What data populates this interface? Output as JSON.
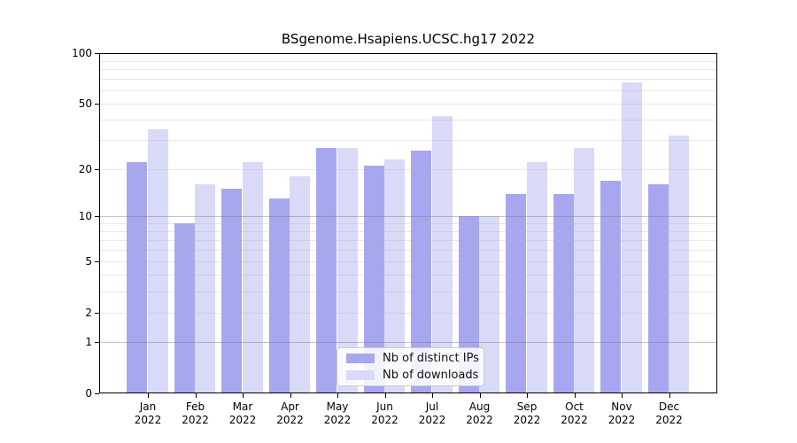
{
  "chart_data": {
    "type": "bar",
    "title": "BSgenome.Hsapiens.UCSC.hg17 2022",
    "year": "2022",
    "months": [
      "Jan",
      "Feb",
      "Mar",
      "Apr",
      "May",
      "Jun",
      "Jul",
      "Aug",
      "Sep",
      "Oct",
      "Nov",
      "Dec"
    ],
    "categories": [
      "Jan 2022",
      "Feb 2022",
      "Mar 2022",
      "Apr 2022",
      "May 2022",
      "Jun 2022",
      "Jul 2022",
      "Aug 2022",
      "Sep 2022",
      "Oct 2022",
      "Nov 2022",
      "Dec 2022"
    ],
    "series": [
      {
        "name": "Nb of distinct IPs",
        "color": "#a7a7f0",
        "values": [
          22,
          9,
          15,
          13,
          27,
          21,
          26,
          10,
          14,
          14,
          17,
          16
        ]
      },
      {
        "name": "Nb of downloads",
        "color": "#d9d9f8",
        "values": [
          35,
          16,
          22,
          18,
          27,
          23,
          42,
          10,
          22,
          27,
          67,
          32
        ]
      }
    ],
    "yscale": "log1p",
    "yticks": [
      0,
      1,
      2,
      5,
      10,
      20,
      50,
      100
    ],
    "ylim": [
      0,
      100
    ],
    "xlabel": "",
    "ylabel": "",
    "grid": "horizontal",
    "legend_position": "lower-center-inside"
  }
}
